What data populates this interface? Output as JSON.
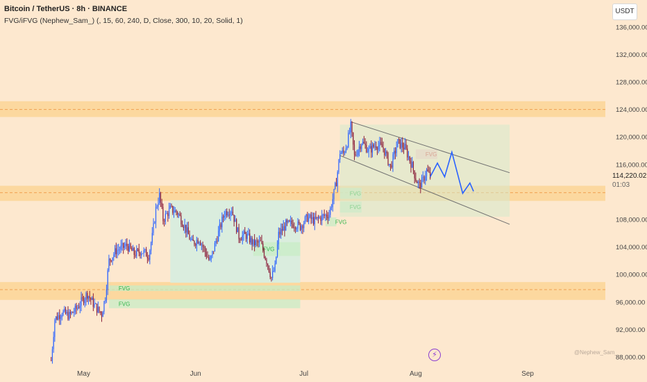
{
  "header": {
    "title": "Bitcoin / TetherUS · 8h · BINANCE",
    "indicator": "FVG/iFVG (Nephew_Sam_) (, 15, 60, 240, D, Close, 300, 10, 20, Solid, 1)"
  },
  "currency_button": "USDT",
  "last_price": {
    "value": "114,220.02",
    "countdown": "01:03"
  },
  "watermark": "@Nephew_Sam_",
  "icons": {
    "bolt": "lightning-bolt-icon"
  },
  "colors": {
    "background": "#fde8cf",
    "up_candle": "#2962ff",
    "down_candle": "#8a1c38",
    "zone": "#fcd596",
    "zone_line": "#f0a050",
    "range_box": "#d6eddf",
    "fvg_bull": "#c8ecc6",
    "fvg_bear": "#f9c7c5",
    "channel": "#6f6f6f",
    "projection": "#2962ff"
  },
  "chart_data": {
    "type": "candlestick",
    "symbol": "Bitcoin / TetherUS",
    "timeframe": "8h",
    "y_axis": {
      "ticks": [
        136000,
        132000,
        128000,
        124000,
        120000,
        116000,
        112000,
        108000,
        104000,
        100000,
        96000,
        92000,
        88000
      ],
      "tick_labels": [
        "136,000.00",
        "132,000.00",
        "128,000.00",
        "124,000.00",
        "120,000.00",
        "116,000.00",
        "112,000.00",
        "108,000.00",
        "104,000.00",
        "100,000.00",
        "96,000.00",
        "92,000.00",
        "88,000.00"
      ]
    },
    "x_axis": {
      "ticks": [
        {
          "label": "May",
          "date": "2025-05-01"
        },
        {
          "label": "Jun",
          "date": "2025-06-01"
        },
        {
          "label": "Jul",
          "date": "2025-07-01"
        },
        {
          "label": "Aug",
          "date": "2025-08-01"
        },
        {
          "label": "Sep",
          "date": "2025-09-01"
        }
      ]
    },
    "price_path": [
      [
        "2025-04-22",
        87500
      ],
      [
        "2025-04-23",
        93500
      ],
      [
        "2025-04-25",
        94500
      ],
      [
        "2025-04-27",
        94000
      ],
      [
        "2025-04-29",
        95000
      ],
      [
        "2025-05-01",
        96500
      ],
      [
        "2025-05-02",
        97200
      ],
      [
        "2025-05-04",
        95500
      ],
      [
        "2025-05-06",
        94200
      ],
      [
        "2025-05-07",
        96800
      ],
      [
        "2025-05-08",
        102000
      ],
      [
        "2025-05-10",
        103500
      ],
      [
        "2025-05-13",
        104200
      ],
      [
        "2025-05-15",
        103000
      ],
      [
        "2025-05-17",
        103400
      ],
      [
        "2025-05-19",
        102800
      ],
      [
        "2025-05-20",
        105500
      ],
      [
        "2025-05-21",
        109500
      ],
      [
        "2025-05-22",
        111500
      ],
      [
        "2025-05-23",
        108000
      ],
      [
        "2025-05-25",
        109500
      ],
      [
        "2025-05-27",
        109000
      ],
      [
        "2025-05-29",
        107000
      ],
      [
        "2025-05-31",
        104500
      ],
      [
        "2025-06-02",
        105200
      ],
      [
        "2025-06-05",
        101800
      ],
      [
        "2025-06-07",
        105500
      ],
      [
        "2025-06-09",
        109000
      ],
      [
        "2025-06-11",
        109500
      ],
      [
        "2025-06-13",
        105500
      ],
      [
        "2025-06-15",
        105700
      ],
      [
        "2025-06-17",
        104500
      ],
      [
        "2025-06-19",
        104600
      ],
      [
        "2025-06-21",
        101500
      ],
      [
        "2025-06-22",
        99500
      ],
      [
        "2025-06-23",
        101000
      ],
      [
        "2025-06-24",
        105800
      ],
      [
        "2025-06-26",
        107200
      ],
      [
        "2025-06-28",
        107400
      ],
      [
        "2025-06-30",
        107000
      ],
      [
        "2025-07-02",
        108300
      ],
      [
        "2025-07-04",
        107800
      ],
      [
        "2025-07-06",
        108400
      ],
      [
        "2025-07-08",
        108800
      ],
      [
        "2025-07-09",
        111000
      ],
      [
        "2025-07-10",
        113500
      ],
      [
        "2025-07-11",
        117800
      ],
      [
        "2025-07-12",
        117600
      ],
      [
        "2025-07-13",
        119200
      ],
      [
        "2025-07-14",
        121500
      ],
      [
        "2025-07-15",
        117200
      ],
      [
        "2025-07-17",
        119300
      ],
      [
        "2025-07-19",
        118000
      ],
      [
        "2025-07-21",
        118900
      ],
      [
        "2025-07-23",
        118400
      ],
      [
        "2025-07-25",
        115600
      ],
      [
        "2025-07-27",
        119200
      ],
      [
        "2025-07-29",
        118400
      ],
      [
        "2025-07-31",
        115800
      ],
      [
        "2025-08-01",
        113900
      ],
      [
        "2025-08-02",
        112900
      ],
      [
        "2025-08-03",
        113700
      ],
      [
        "2025-08-04",
        115100
      ],
      [
        "2025-08-05",
        114200
      ]
    ],
    "projection": [
      [
        "2025-08-05",
        114200
      ],
      [
        "2025-08-07",
        116200
      ],
      [
        "2025-08-09",
        114200
      ],
      [
        "2025-08-11",
        117800
      ],
      [
        "2025-08-14",
        111800
      ],
      [
        "2025-08-16",
        113300
      ],
      [
        "2025-08-17",
        112100
      ]
    ],
    "channel": {
      "upper": [
        [
          "2025-07-14",
          122200
        ],
        [
          "2025-08-27",
          114800
        ]
      ],
      "lower": [
        [
          "2025-07-11",
          117300
        ],
        [
          "2025-08-27",
          107300
        ]
      ],
      "fill_box": {
        "date_range": [
          "2025-07-11",
          "2025-08-27"
        ],
        "price_range": [
          108400,
          121800
        ]
      }
    },
    "zones": [
      {
        "price_range": [
          122900,
          125200
        ],
        "midline": 124000
      },
      {
        "price_range": [
          110700,
          112900
        ],
        "midline": 111900
      },
      {
        "price_range": [
          96300,
          98900
        ],
        "midline": 97800
      }
    ],
    "range_box": {
      "date_range": [
        "2025-05-25",
        "2025-06-30"
      ],
      "price_range": [
        98800,
        110800
      ]
    },
    "fvg_boxes": [
      {
        "label": "FVG",
        "kind": "bullish",
        "date_range": [
          "2025-05-08",
          "2025-06-30"
        ],
        "price_range": [
          97600,
          98400
        ]
      },
      {
        "label": "FVG",
        "kind": "bullish",
        "date_range": [
          "2025-05-08",
          "2025-06-30"
        ],
        "price_range": [
          95100,
          96400
        ]
      },
      {
        "label": "FVG",
        "kind": "bullish",
        "date_range": [
          "2025-06-17",
          "2025-06-30"
        ],
        "price_range": [
          102700,
          104700
        ]
      },
      {
        "label": "FVG",
        "kind": "bullish",
        "date_range": [
          "2025-07-11",
          "2025-07-17"
        ],
        "price_range": [
          111000,
          112600
        ]
      },
      {
        "label": "FVG",
        "kind": "bullish",
        "date_range": [
          "2025-07-11",
          "2025-07-17"
        ],
        "price_range": [
          109000,
          110600
        ]
      },
      {
        "label": "FVG",
        "kind": "bullish",
        "date_range": [
          "2025-07-07",
          "2025-07-10"
        ],
        "price_range": [
          107000,
          108300
        ]
      },
      {
        "label": "FVG",
        "kind": "bearish",
        "date_range": [
          "2025-08-01",
          "2025-08-07"
        ],
        "price_range": [
          116800,
          118200
        ]
      }
    ]
  }
}
